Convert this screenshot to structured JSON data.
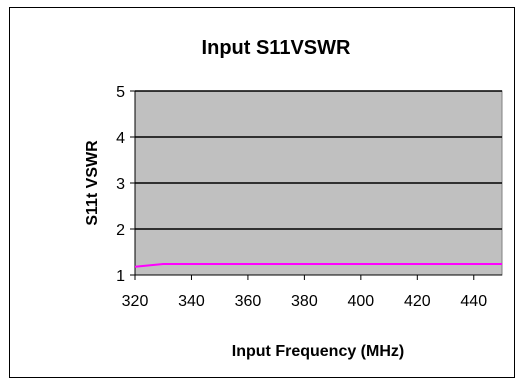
{
  "chart_data": {
    "type": "line",
    "title": "Input S11VSWR",
    "xlabel": "Input Frequency (MHz)",
    "ylabel": "S11t VSWR",
    "xlim": [
      320,
      450
    ],
    "ylim": [
      1,
      5
    ],
    "xticks": [
      320,
      340,
      360,
      380,
      400,
      420,
      440
    ],
    "yticks": [
      1,
      2,
      3,
      4,
      5
    ],
    "grid": "horizontal",
    "legend": "none",
    "plot_background": "#c0c0c0",
    "gridline_color": "#000000",
    "series": [
      {
        "color": "#ff00ff",
        "x": [
          320,
          330,
          340,
          350,
          360,
          370,
          380,
          390,
          400,
          410,
          420,
          430,
          440,
          450
        ],
        "y": [
          1.18,
          1.24,
          1.24,
          1.24,
          1.24,
          1.24,
          1.24,
          1.24,
          1.24,
          1.24,
          1.24,
          1.24,
          1.24,
          1.24
        ]
      }
    ]
  }
}
